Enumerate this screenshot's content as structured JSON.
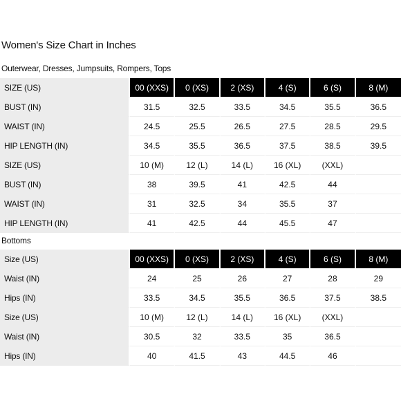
{
  "title": "Women's Size Chart in Inches",
  "sections": [
    {
      "title": "Outerwear, Dresses, Jumpsuits, Rompers, Tops",
      "rows": [
        {
          "label": "SIZE (US)",
          "cells": [
            "00 (XXS)",
            "0 (XS)",
            "2 (XS)",
            "4 (S)",
            "6 (S)",
            "8 (M)"
          ]
        },
        {
          "label": "BUST (IN)",
          "cells": [
            "31.5",
            "32.5",
            "33.5",
            "34.5",
            "35.5",
            "36.5"
          ]
        },
        {
          "label": "WAIST (IN)",
          "cells": [
            "24.5",
            "25.5",
            "26.5",
            "27.5",
            "28.5",
            "29.5"
          ]
        },
        {
          "label": "HIP LENGTH (IN)",
          "cells": [
            "34.5",
            "35.5",
            "36.5",
            "37.5",
            "38.5",
            "39.5"
          ]
        },
        {
          "label": "SIZE (US)",
          "cells": [
            "10 (M)",
            "12 (L)",
            "14 (L)",
            "16 (XL)",
            "(XXL)",
            ""
          ]
        },
        {
          "label": "BUST (IN)",
          "cells": [
            "38",
            "39.5",
            "41",
            "42.5",
            "44",
            ""
          ]
        },
        {
          "label": "WAIST (IN)",
          "cells": [
            "31",
            "32.5",
            "34",
            "35.5",
            "37",
            ""
          ]
        },
        {
          "label": "HIP LENGTH (IN)",
          "cells": [
            "41",
            "42.5",
            "44",
            "45.5",
            "47",
            ""
          ]
        }
      ]
    },
    {
      "title": "Bottoms",
      "rows": [
        {
          "label": "Size (US)",
          "cells": [
            "00 (XXS)",
            "0 (XS)",
            "2 (XS)",
            "4 (S)",
            "6 (S)",
            "8 (M)"
          ]
        },
        {
          "label": "Waist (IN)",
          "cells": [
            "24",
            "25",
            "26",
            "27",
            "28",
            "29"
          ]
        },
        {
          "label": "Hips (IN)",
          "cells": [
            "33.5",
            "34.5",
            "35.5",
            "36.5",
            "37.5",
            "38.5"
          ]
        },
        {
          "label": "Size (US)",
          "cells": [
            "10 (M)",
            "12 (L)",
            "14 (L)",
            "16 (XL)",
            "(XXL)",
            ""
          ]
        },
        {
          "label": "Waist (IN)",
          "cells": [
            "30.5",
            "32",
            "33.5",
            "35",
            "36.5",
            ""
          ]
        },
        {
          "label": "Hips (IN)",
          "cells": [
            "40",
            "41.5",
            "43",
            "44.5",
            "46",
            ""
          ]
        }
      ]
    }
  ],
  "colors": {
    "header_bg": "#000000",
    "header_text": "#ffffff",
    "label_bg": "#ececec"
  }
}
